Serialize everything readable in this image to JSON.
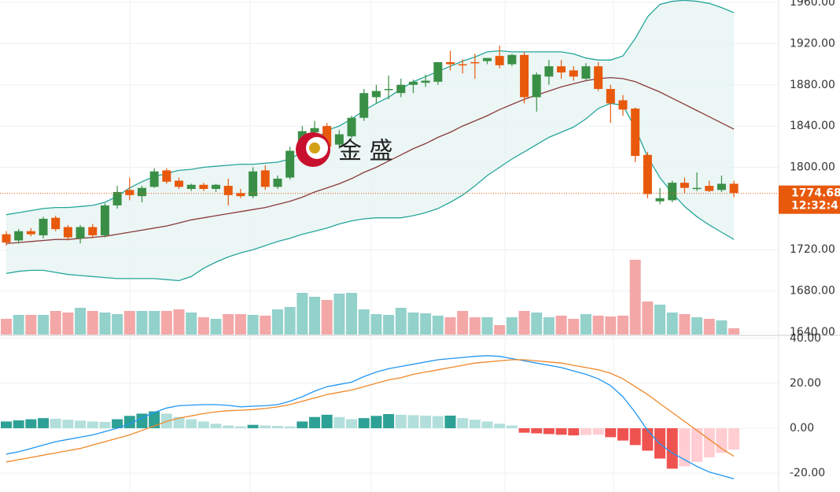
{
  "watermark": "金 盛",
  "chart_data": [
    {
      "type": "candlestick",
      "ylim": [
        1637.7,
        1962.3
      ],
      "yticks": [
        {
          "value": 1640,
          "label": "1640.00"
        },
        {
          "value": 1680,
          "label": "1680.00"
        },
        {
          "value": 1720,
          "label": "1720.00"
        },
        {
          "value": 1800,
          "label": "1800.00"
        },
        {
          "value": 1840,
          "label": "1840.00"
        },
        {
          "value": 1880,
          "label": "1880.00"
        },
        {
          "value": 1920,
          "label": "1920.00"
        },
        {
          "value": 1960,
          "label": "1960.00"
        }
      ],
      "grid": true,
      "up_color": "#3a8f47",
      "down_color": "#e8590c",
      "open": [
        1735,
        1729,
        1738,
        1734,
        1751,
        1742,
        1731,
        1742,
        1734,
        1763,
        1778,
        1772,
        1781,
        1797,
        1787,
        1779,
        1783,
        1779,
        1782,
        1775,
        1772,
        1797,
        1781,
        1790,
        1818,
        1834,
        1840,
        1822,
        1830,
        1848,
        1868,
        1875,
        1872,
        1880,
        1882,
        1883,
        1902,
        1900,
        1902,
        1903,
        1908,
        1900,
        1909,
        1868,
        1888,
        1898,
        1894,
        1886,
        1898,
        1876,
        1865,
        1857,
        1812,
        1767,
        1768,
        1785,
        1779,
        1782,
        1778,
        1784
      ],
      "high": [
        1738,
        1740,
        1741,
        1752,
        1753,
        1744,
        1744,
        1745,
        1765,
        1782,
        1790,
        1782,
        1799,
        1799,
        1790,
        1784,
        1785,
        1784,
        1789,
        1779,
        1800,
        1802,
        1792,
        1820,
        1840,
        1845,
        1843,
        1836,
        1850,
        1876,
        1880,
        1889,
        1886,
        1885,
        1890,
        1902,
        1913,
        1905,
        1910,
        1906,
        1918,
        1910,
        1912,
        1892,
        1904,
        1904,
        1898,
        1901,
        1902,
        1880,
        1870,
        1858,
        1815,
        1780,
        1787,
        1790,
        1795,
        1787,
        1792,
        1787
      ],
      "low": [
        1724,
        1726,
        1733,
        1731,
        1738,
        1729,
        1726,
        1731,
        1732,
        1760,
        1768,
        1766,
        1780,
        1784,
        1779,
        1777,
        1777,
        1776,
        1763,
        1770,
        1770,
        1778,
        1779,
        1788,
        1812,
        1825,
        1815,
        1818,
        1828,
        1845,
        1862,
        1866,
        1868,
        1872,
        1878,
        1880,
        1894,
        1891,
        1886,
        1900,
        1896,
        1898,
        1862,
        1854,
        1880,
        1886,
        1884,
        1884,
        1874,
        1843,
        1850,
        1805,
        1770,
        1764,
        1766,
        1775,
        1777,
        1776,
        1776,
        1771
      ],
      "close": [
        1727,
        1738,
        1735,
        1750,
        1740,
        1732,
        1742,
        1734,
        1763,
        1776,
        1773,
        1780,
        1796,
        1786,
        1781,
        1783,
        1779,
        1783,
        1773,
        1772,
        1796,
        1781,
        1789,
        1816,
        1835,
        1838,
        1820,
        1832,
        1848,
        1872,
        1874,
        1876,
        1880,
        1883,
        1884,
        1902,
        1900,
        1899,
        1901,
        1906,
        1899,
        1909,
        1868,
        1890,
        1898,
        1892,
        1888,
        1898,
        1876,
        1862,
        1856,
        1811,
        1774,
        1770,
        1785,
        1780,
        1780,
        1777,
        1784,
        1775
      ],
      "series": [
        {
          "color": "#26a69a",
          "values": [
            1754,
            1756,
            1758,
            1760,
            1761,
            1761,
            1762,
            1763,
            1766,
            1772,
            1780,
            1786,
            1791,
            1794,
            1797,
            1798,
            1800,
            1801,
            1802,
            1803,
            1803,
            1804,
            1805,
            1808,
            1815,
            1826,
            1836,
            1840,
            1847,
            1855,
            1862,
            1868,
            1876,
            1883,
            1888,
            1893,
            1898,
            1903,
            1907,
            1912,
            1913,
            1912,
            1912,
            1912,
            1912,
            1912,
            1910,
            1906,
            1904,
            1904,
            1908,
            1925,
            1946,
            1958,
            1961,
            1962,
            1961,
            1959,
            1955,
            1950
          ]
        },
        {
          "color": "#8b3a3a",
          "values": [
            1726,
            1727,
            1728,
            1729,
            1730,
            1730,
            1731,
            1732,
            1733,
            1735,
            1737,
            1739,
            1741,
            1743,
            1746,
            1749,
            1751,
            1753,
            1755,
            1757,
            1759,
            1761,
            1764,
            1767,
            1771,
            1776,
            1780,
            1784,
            1789,
            1795,
            1800,
            1806,
            1812,
            1818,
            1823,
            1829,
            1834,
            1840,
            1845,
            1850,
            1856,
            1861,
            1866,
            1870,
            1874,
            1878,
            1881,
            1884,
            1886,
            1887,
            1886,
            1883,
            1878,
            1873,
            1867,
            1861,
            1855,
            1849,
            1843,
            1837
          ]
        },
        {
          "color": "#26a69a",
          "values": [
            1697,
            1699,
            1700,
            1700,
            1698,
            1696,
            1695,
            1694,
            1693,
            1692,
            1692,
            1692,
            1692,
            1691,
            1690,
            1694,
            1702,
            1708,
            1713,
            1717,
            1720,
            1724,
            1728,
            1731,
            1735,
            1738,
            1741,
            1745,
            1748,
            1750,
            1751,
            1751,
            1751,
            1753,
            1756,
            1760,
            1766,
            1773,
            1782,
            1792,
            1800,
            1808,
            1815,
            1822,
            1829,
            1834,
            1839,
            1847,
            1857,
            1862,
            1860,
            1838,
            1810,
            1790,
            1775,
            1762,
            1752,
            1744,
            1737,
            1730
          ]
        }
      ],
      "band_fill": "#e6f4f2",
      "volume": {
        "ylim": [
          0,
          100
        ],
        "up_color": "#93d1cb",
        "down_color": "#f4a7a7",
        "values": [
          20,
          25,
          25,
          25,
          30,
          28,
          34,
          30,
          28,
          26,
          30,
          30,
          30,
          30,
          32,
          28,
          22,
          20,
          26,
          26,
          25,
          24,
          32,
          35,
          53,
          48,
          44,
          52,
          53,
          32,
          26,
          25,
          34,
          28,
          27,
          24,
          22,
          30,
          22,
          22,
          12,
          22,
          30,
          28,
          22,
          24,
          20,
          26,
          24,
          23,
          24,
          95,
          42,
          38,
          28,
          26,
          22,
          20,
          18,
          8
        ]
      },
      "last_price": 1774.68,
      "last_time": "12:32:4",
      "last_color": "#e8590c"
    },
    {
      "type": "macd",
      "ylim": [
        -28.4,
        41
      ],
      "yticks": [
        {
          "value": -20,
          "label": "-20.00"
        },
        {
          "value": 0,
          "label": "0.00"
        },
        {
          "value": 20,
          "label": "20.00"
        },
        {
          "value": 40,
          "label": "40.00"
        }
      ],
      "histogram": [
        3,
        3.5,
        4,
        4.5,
        4.2,
        3.8,
        3.4,
        3.0,
        2.8,
        4,
        5.5,
        6.5,
        7.5,
        6.5,
        5,
        4,
        3,
        2,
        1.2,
        0.8,
        1.5,
        1.2,
        1.0,
        0.8,
        3,
        5,
        6,
        5,
        4,
        4.5,
        5.5,
        6.3,
        6,
        5.8,
        5.6,
        5.4,
        5.6,
        4.5,
        3.8,
        3,
        2,
        1.2,
        -2,
        -2.3,
        -2.6,
        -2.9,
        -3.2,
        -3,
        -2.9,
        -4,
        -5.5,
        -7.5,
        -10,
        -13.5,
        -18,
        -17,
        -15,
        -13,
        -11,
        -9.5
      ],
      "histogram_colors": {
        "pos_up": "#2ea196",
        "pos_down": "#b2dfdb",
        "neg_down": "#ef5350",
        "neg_up": "#ffcdd2"
      },
      "series": [
        {
          "color": "#2196f3",
          "values": [
            -11.5,
            -10.5,
            -9,
            -7.5,
            -6,
            -5,
            -4,
            -3,
            -1.5,
            0,
            2,
            4.5,
            7,
            9,
            10,
            10.3,
            10.5,
            10.5,
            10.2,
            9.5,
            9.8,
            10,
            10.5,
            12,
            14,
            16.5,
            18.5,
            19.5,
            20.5,
            23,
            25,
            26.5,
            27.5,
            28.5,
            29.5,
            30.5,
            31,
            31.5,
            32,
            32.3,
            32,
            31,
            30,
            29,
            28,
            27,
            25.5,
            24,
            22,
            19,
            14,
            7,
            -1,
            -7,
            -11,
            -14,
            -17,
            -19.5,
            -21,
            -22.5
          ]
        },
        {
          "color": "#f0882a",
          "values": [
            -15,
            -14,
            -13,
            -12,
            -11,
            -10,
            -9,
            -7.5,
            -6,
            -4.5,
            -3,
            -1,
            1,
            3,
            4.5,
            5.5,
            6.5,
            7.3,
            7.8,
            8,
            8.3,
            8.8,
            9.5,
            10.5,
            12,
            13.5,
            15,
            16,
            17,
            18.5,
            20,
            21.5,
            22.5,
            24,
            25,
            26,
            27,
            28,
            29,
            29.5,
            30,
            30.5,
            30.5,
            30,
            29.5,
            29,
            28,
            27,
            26,
            24.5,
            22,
            18.5,
            15,
            11,
            7,
            3,
            -1,
            -5,
            -9,
            -12.5
          ]
        }
      ],
      "grid": true
    }
  ]
}
